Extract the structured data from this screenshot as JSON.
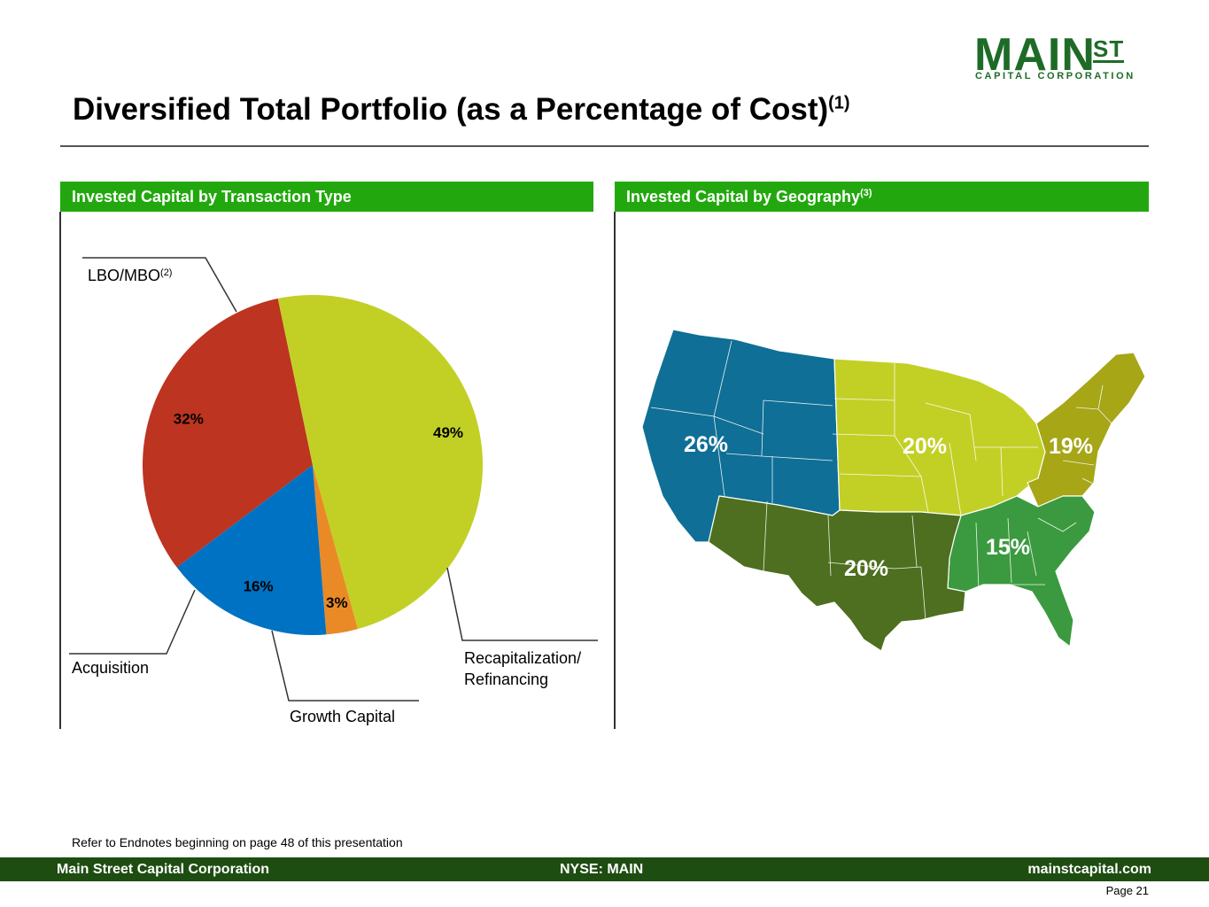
{
  "logo": {
    "main": "MAIN",
    "st": "ST",
    "sub": "CAPITAL CORPORATION"
  },
  "title": {
    "text": "Diversified Total Portfolio (as a Percentage of Cost)",
    "sup": "(1)"
  },
  "panels": {
    "left": {
      "header": "Invested Capital by Transaction Type"
    },
    "right": {
      "header": "Invested Capital by Geography",
      "header_sup": "(3)"
    }
  },
  "chart_data": {
    "type": "pie",
    "title": "Invested Capital by Transaction Type",
    "slices": [
      {
        "name": "LBO/MBO",
        "name_sup": "(2)",
        "value": 32,
        "label": "32%",
        "color": "#bd3421"
      },
      {
        "name": "Recapitalization/ Refinancing",
        "value": 49,
        "label": "49%",
        "color": "#c2d026"
      },
      {
        "name": "Growth Capital",
        "value": 3,
        "label": "3%",
        "color": "#e98a26"
      },
      {
        "name": "Acquisition",
        "value": 16,
        "label": "16%",
        "color": "#0072c3"
      }
    ]
  },
  "geography": {
    "regions": [
      {
        "name": "west",
        "label": "26%",
        "color": "#0f6f96"
      },
      {
        "name": "midwest",
        "label": "20%",
        "color": "#c2d026"
      },
      {
        "name": "northeast",
        "label": "19%",
        "color": "#a6a617"
      },
      {
        "name": "southeast",
        "label": "15%",
        "color": "#3b9a3f"
      },
      {
        "name": "southwest",
        "label": "20%",
        "color": "#4d6f1f"
      }
    ]
  },
  "endnote": "Refer to Endnotes beginning on page 48 of this presentation",
  "footer": {
    "left": "Main Street Capital Corporation",
    "center": "NYSE: MAIN",
    "right": "mainstcapital.com"
  },
  "page": "Page  21"
}
